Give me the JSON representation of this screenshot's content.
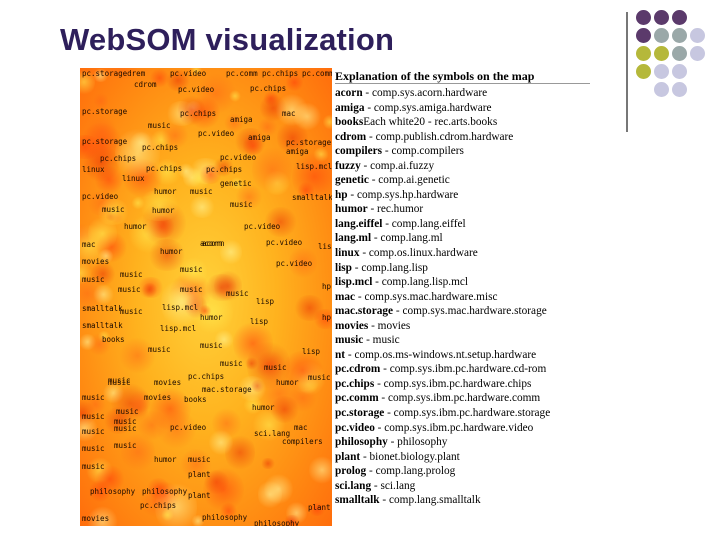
{
  "slide": {
    "title": "WebSOM visualization"
  },
  "decor_dots": [
    {
      "color": "#5b3a6b"
    },
    {
      "color": "#5b3a6b"
    },
    {
      "color": "#5b3a6b"
    },
    {
      "color": "#5b3a6b"
    },
    {
      "color": "#9aa8a8"
    },
    {
      "color": "#9aa8a8"
    },
    {
      "color": "#c7c7e0"
    },
    {
      "color": "#b5b83a"
    },
    {
      "color": "#b5b83a"
    },
    {
      "color": "#9aa8a8"
    },
    {
      "color": "#c7c7e0"
    },
    {
      "color": "#b5b83a"
    },
    {
      "color": "#c7c7e0"
    },
    {
      "color": "#c7c7e0"
    },
    {
      "color": "#c7c7e0"
    },
    {
      "color": "#c7c7e0"
    }
  ],
  "map": {
    "labels": [
      "pc.storagedrem",
      "pc.video",
      "pc.comm",
      "pc.chips",
      "pc.comm",
      "cdrom",
      "pc.video",
      "pc.chips",
      "pc.storage",
      "music",
      "pc.chips",
      "amiga",
      "mac",
      "pc.storage",
      "pc.video",
      "amiga",
      "pc.storage",
      "pc.chips",
      "amiga",
      "pc.chips",
      "pc.video",
      "lisp.mcl",
      "linux",
      "pc.chips",
      "pc.chips",
      "linux",
      "humor",
      "music",
      "genetic",
      "pc.video",
      "smalltalk",
      "music",
      "music",
      "humor",
      "humor",
      "pc.video",
      "acorn",
      "pc.video",
      "mac",
      "humor",
      "acorn",
      "lisp",
      "movies",
      "music",
      "music",
      "pc.video",
      "music",
      "music",
      "hp",
      "music",
      "music",
      "lisp",
      "smalltalk",
      "lisp.mcl",
      "hp",
      "music",
      "lisp",
      "humor",
      "smalltalk",
      "lisp.mcl",
      "books",
      "music",
      "music",
      "lisp",
      "music",
      "music",
      "music",
      "pc.chips",
      "music",
      "music",
      "movies",
      "mac.storage",
      "humor",
      "music",
      "movies",
      "books",
      "music",
      "music",
      "humor",
      "music",
      "music",
      "pc.video",
      "sci.lang",
      "mac",
      "music",
      "music",
      "compilers",
      "music",
      "humor",
      "music",
      "music",
      "plant",
      "philosophy",
      "philosophy",
      "plant",
      "pc.chips",
      "plant",
      "movies",
      "philosophy",
      "philosophy"
    ]
  },
  "legend": {
    "title": "Explanation of the symbols on the map",
    "items": [
      {
        "abbr": "acorn",
        "desc": " - comp.sys.acorn.hardware"
      },
      {
        "abbr": "amiga",
        "desc": " - comp.sys.amiga.hardware"
      },
      {
        "abbr": "books",
        "desc": "Each white20 - rec.arts.books"
      },
      {
        "abbr": "cdrom",
        "desc": " - comp.publish.cdrom.hardware"
      },
      {
        "abbr": "compilers",
        "desc": " - comp.compilers"
      },
      {
        "abbr": "fuzzy",
        "desc": " - comp.ai.fuzzy"
      },
      {
        "abbr": "genetic",
        "desc": " - comp.ai.genetic"
      },
      {
        "abbr": "hp",
        "desc": " - comp.sys.hp.hardware"
      },
      {
        "abbr": "humor",
        "desc": " - rec.humor"
      },
      {
        "abbr": "lang.eiffel",
        "desc": " - comp.lang.eiffel"
      },
      {
        "abbr": "lang.ml",
        "desc": " - comp.lang.ml"
      },
      {
        "abbr": "linux",
        "desc": " - comp.os.linux.hardware"
      },
      {
        "abbr": "lisp",
        "desc": " - comp.lang.lisp"
      },
      {
        "abbr": "lisp.mcl",
        "desc": " - comp.lang.lisp.mcl"
      },
      {
        "abbr": "mac",
        "desc": " - comp.sys.mac.hardware.misc"
      },
      {
        "abbr": "mac.storage",
        "desc": " - comp.sys.mac.hardware.storage"
      },
      {
        "abbr": "movies",
        "desc": " - movies"
      },
      {
        "abbr": "music",
        "desc": " - music"
      },
      {
        "abbr": "nt",
        "desc": " - comp.os.ms-windows.nt.setup.hardware"
      },
      {
        "abbr": "pc.cdrom",
        "desc": " - comp.sys.ibm.pc.hardware.cd-rom"
      },
      {
        "abbr": "pc.chips",
        "desc": " - comp.sys.ibm.pc.hardware.chips"
      },
      {
        "abbr": "pc.comm",
        "desc": " - comp.sys.ibm.pc.hardware.comm"
      },
      {
        "abbr": "pc.storage",
        "desc": " - comp.sys.ibm.pc.hardware.storage"
      },
      {
        "abbr": "pc.video",
        "desc": " - comp.sys.ibm.pc.hardware.video"
      },
      {
        "abbr": "philosophy",
        "desc": " - philosophy"
      },
      {
        "abbr": "plant",
        "desc": " - bionet.biology.plant"
      },
      {
        "abbr": "prolog",
        "desc": " - comp.lang.prolog"
      },
      {
        "abbr": "sci.lang",
        "desc": " - sci.lang"
      },
      {
        "abbr": "smalltalk",
        "desc": " - comp.lang.smalltalk"
      }
    ]
  }
}
